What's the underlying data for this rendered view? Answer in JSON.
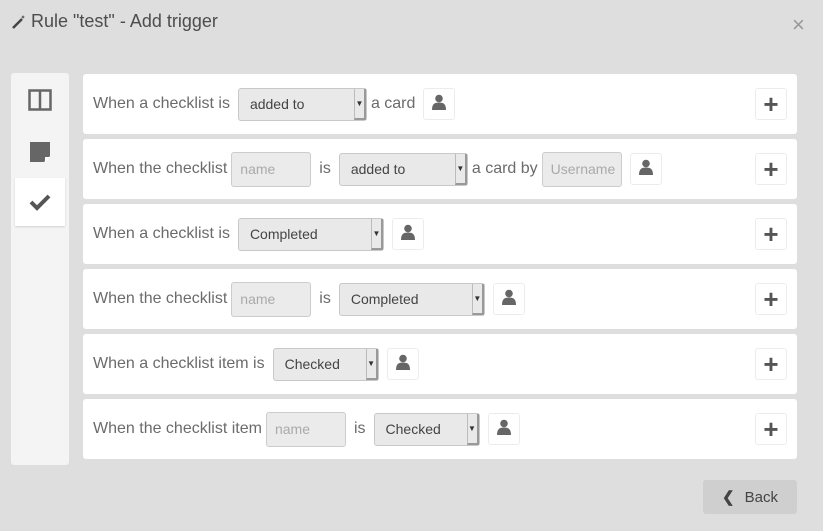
{
  "header": {
    "title": "Rule \"test\" - Add trigger",
    "close": "×"
  },
  "sidebar": [
    {
      "icon": "columns-icon"
    },
    {
      "icon": "card-icon"
    },
    {
      "icon": "checkmark-icon",
      "active": true
    }
  ],
  "rows": [
    {
      "t1": "When a checklist is",
      "sel": "added to",
      "t2": "a card"
    },
    {
      "t1": "When the checklist",
      "input": "name",
      "t_is": "is",
      "sel": "added to",
      "t2": "a card by",
      "user_input": "Username"
    },
    {
      "t1": "When a checklist is",
      "sel": "Completed"
    },
    {
      "t1": "When the checklist",
      "input": "name",
      "t_is": "is",
      "sel": "Completed"
    },
    {
      "t1": "When a checklist item is",
      "sel": "Checked"
    },
    {
      "t1": "When the checklist item",
      "input": "name",
      "t_is": "is",
      "sel": "Checked"
    }
  ],
  "footer": {
    "back": "Back"
  }
}
